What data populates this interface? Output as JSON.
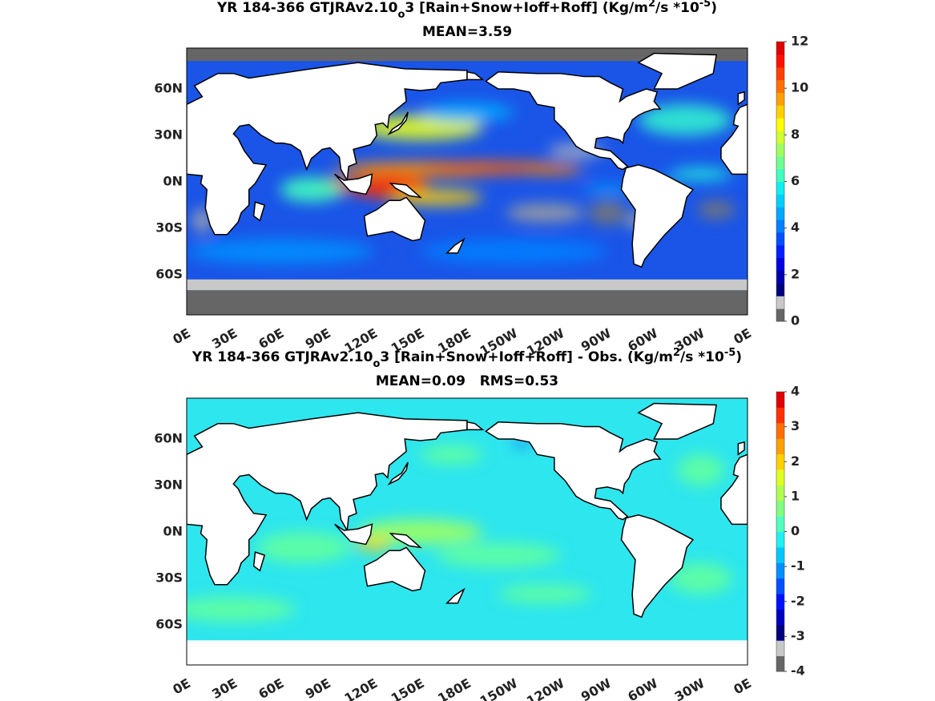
{
  "panels": [
    {
      "title": [
        {
          "text": "YR 184-366 GTJRAv2.10"
        },
        {
          "text": "o",
          "shift": "sub"
        },
        {
          "text": "3 [Rain+Snow+Ioff+Roff] (Kg/m"
        },
        {
          "text": "2",
          "shift": "super"
        },
        {
          "text": "/s *10"
        },
        {
          "text": "-5",
          "shift": "super"
        },
        {
          "text": ")"
        }
      ],
      "subtitle": "MEAN=3.59",
      "lat_labels": [
        "60N",
        "30N",
        "0N",
        "30S",
        "60S"
      ],
      "lon_labels": [
        "0E",
        "30E",
        "60E",
        "90E",
        "120E",
        "150E",
        "180E",
        "150W",
        "120W",
        "90W",
        "60W",
        "30W",
        "0E"
      ],
      "colorbar": {
        "lim": [
          0,
          12
        ],
        "ticks": [
          0,
          2,
          4,
          6,
          8,
          10,
          12
        ],
        "colors": [
          "#666666",
          "#c8c8c8",
          "#00007f",
          "#0000b0",
          "#0000e0",
          "#0020ff",
          "#0050ff",
          "#0080ff",
          "#00a8ff",
          "#00d0ff",
          "#10f0f0",
          "#40ffc0",
          "#70ff90",
          "#a0ff60",
          "#d0ff30",
          "#ffff00",
          "#ffd000",
          "#ffa000",
          "#ff7000",
          "#ff4000",
          "#ff1000",
          "#e00000"
        ]
      }
    },
    {
      "title": [
        {
          "text": "YR 184-366 GTJRAv2.10"
        },
        {
          "text": "o",
          "shift": "sub"
        },
        {
          "text": "3 [Rain+Snow+Ioff+Roff] - Obs. (Kg/m"
        },
        {
          "text": "2",
          "shift": "super"
        },
        {
          "text": "/s *10"
        },
        {
          "text": "-5",
          "shift": "super"
        },
        {
          "text": ")"
        }
      ],
      "subtitle": "MEAN=0.09   RMS=0.53",
      "lat_labels": [
        "60N",
        "30N",
        "0N",
        "30S",
        "60S"
      ],
      "lon_labels": [
        "0E",
        "30E",
        "60E",
        "90E",
        "120E",
        "150E",
        "180E",
        "150W",
        "120W",
        "90W",
        "60W",
        "30W",
        "0E"
      ],
      "colorbar": {
        "lim": [
          -4,
          4
        ],
        "ticks": [
          -4,
          -3,
          -2,
          -1,
          0,
          1,
          2,
          3,
          4
        ],
        "colors": [
          "#666666",
          "#c8c8c8",
          "#00007f",
          "#0000c0",
          "#0010ff",
          "#0050ff",
          "#0090ff",
          "#00c8ff",
          "#20f0f0",
          "#50ffc0",
          "#80ff80",
          "#b0ff50",
          "#e0ff20",
          "#ffd000",
          "#ffa000",
          "#ff7000",
          "#ff3000",
          "#e00000"
        ]
      }
    }
  ]
}
